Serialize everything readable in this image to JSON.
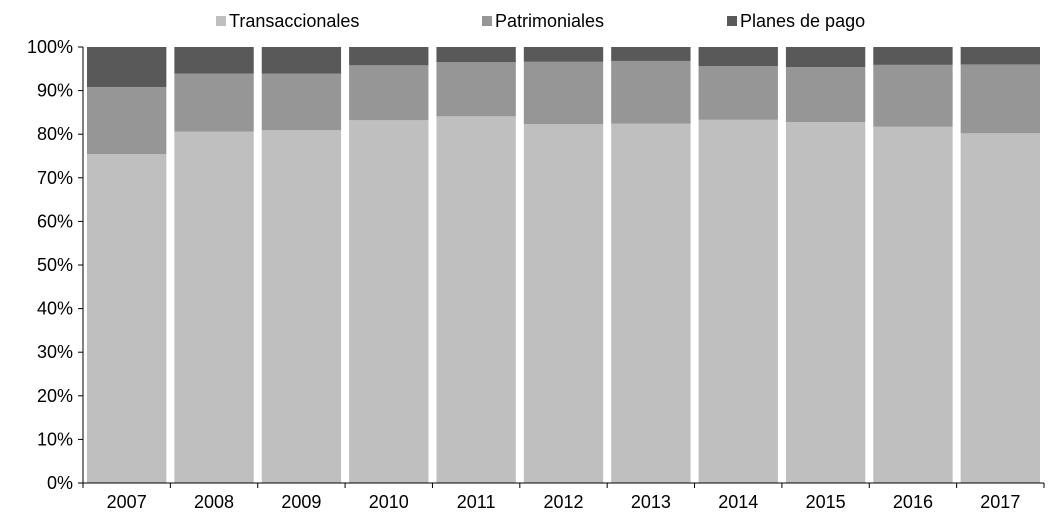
{
  "chart_data": {
    "type": "bar",
    "stacked": true,
    "percent": true,
    "categories": [
      "2007",
      "2008",
      "2009",
      "2010",
      "2011",
      "2012",
      "2013",
      "2014",
      "2015",
      "2016",
      "2017"
    ],
    "series": [
      {
        "name": "Transaccionales",
        "color": "#bfbfbf",
        "values": [
          75.4,
          80.6,
          80.9,
          83.2,
          84.1,
          82.3,
          82.4,
          83.3,
          82.8,
          81.7,
          80.2
        ]
      },
      {
        "name": "Patrimoniales",
        "color": "#969696",
        "values": [
          15.4,
          13.3,
          13.0,
          12.6,
          12.4,
          14.3,
          14.4,
          12.3,
          12.6,
          14.2,
          15.8
        ]
      },
      {
        "name": "Planes de pago",
        "color": "#595959",
        "values": [
          9.2,
          6.1,
          6.1,
          4.2,
          3.5,
          3.4,
          3.2,
          4.4,
          4.6,
          4.1,
          4.0
        ]
      }
    ],
    "y_ticks": [
      "0%",
      "10%",
      "20%",
      "30%",
      "40%",
      "50%",
      "60%",
      "70%",
      "80%",
      "90%",
      "100%"
    ],
    "ylim": [
      0,
      100
    ],
    "legend_position": "top",
    "grid": false
  }
}
